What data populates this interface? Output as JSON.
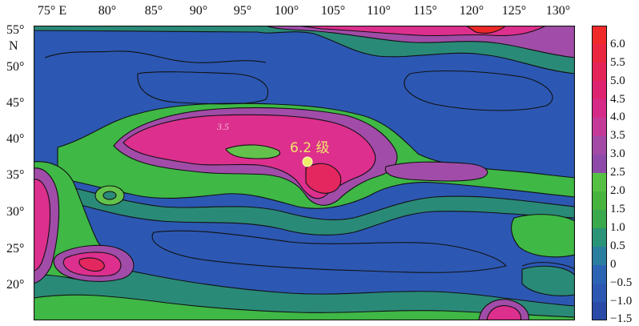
{
  "map": {
    "lon_ticks": [
      "75° E",
      "80°",
      "85°",
      "90°",
      "95°",
      "100°",
      "105°",
      "110°",
      "115°",
      "120°",
      "125°",
      "130°"
    ],
    "lat_ticks": [
      "55°",
      "N",
      "50°",
      "45°",
      "40°",
      "35°",
      "30°",
      "25°",
      "20°"
    ],
    "contour_label": "3.5",
    "epicenter_label": "6.2 级",
    "colors": {
      "deep_blue": "#2c58b3",
      "teal": "#2a8a78",
      "green": "#3fb846",
      "light_green": "#62c24b",
      "violet": "#a14ca8",
      "magenta": "#dd2f8e",
      "crimson": "#e52760",
      "red": "#ee2828",
      "epicenter": "#eded6a"
    }
  },
  "colorbar": {
    "labels": [
      "6.0",
      "5.5",
      "5.0",
      "4.5",
      "4.0",
      "3.5",
      "3.0",
      "2.5",
      "2.0",
      "1.5",
      "1.0",
      "0.5",
      "0",
      "−0.5",
      "−1.0",
      "−1.5"
    ],
    "colors": [
      "#f02a2a",
      "#ea2640",
      "#e42458",
      "#de2470",
      "#d62a88",
      "#c43a98",
      "#a24aa6",
      "#8e4aa8",
      "#56c044",
      "#48b43e",
      "#3aa84c",
      "#2a9478",
      "#2a7ea0",
      "#2c64b4",
      "#2c58b3",
      "#2a4aa8"
    ]
  }
}
